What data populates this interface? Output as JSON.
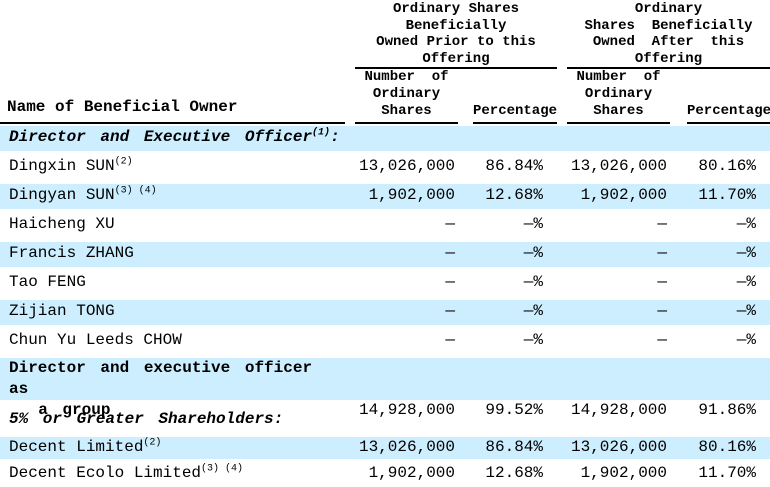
{
  "colors": {
    "row_highlight": "#cceeff",
    "rule": "#000000",
    "text": "#000000"
  },
  "headers": {
    "name": "Name of Beneficial Owner",
    "group_before": "Ordinary Shares\nBeneficially\nOwned Prior to this\nOffering",
    "group_after": "Ordinary\nShares  Beneficially\nOwned  After  this\nOffering",
    "shares_col": "Number  of\nOrdinary\nShares",
    "pct_col": "Percentage"
  },
  "rows": [
    {
      "name": "Director and Executive Officer",
      "sup": "(1)",
      "after": ":",
      "cells": [
        "",
        "",
        "",
        ""
      ]
    },
    {
      "name": "Dingxin SUN",
      "sup": "(2)",
      "cells": [
        "13,026,000",
        "86.84%",
        "13,026,000",
        "80.16%"
      ]
    },
    {
      "name": "Dingyan SUN",
      "sup": "(3) (4)",
      "cells": [
        "1,902,000",
        "12.68%",
        "1,902,000",
        "11.70%"
      ]
    },
    {
      "name": "Haicheng XU",
      "cells": [
        "—",
        "—%",
        "—",
        "—%"
      ]
    },
    {
      "name": "Francis ZHANG",
      "cells": [
        "—",
        "—%",
        "—",
        "—%"
      ]
    },
    {
      "name": "Tao FENG",
      "cells": [
        "—",
        "—%",
        "—",
        "—%"
      ]
    },
    {
      "name": "Zijian TONG",
      "cells": [
        "—",
        "—%",
        "—",
        "—%"
      ]
    },
    {
      "name": "Chun Yu Leeds CHOW",
      "cells": [
        "—",
        "—%",
        "—",
        "—%"
      ]
    },
    {
      "name": "Director and executive officer as\n  a group",
      "cells": [
        "14,928,000",
        "99.52%",
        "14,928,000",
        "91.86%"
      ]
    },
    {
      "name": "5% or Greater Shareholders:",
      "cells": [
        "",
        "",
        "",
        ""
      ]
    },
    {
      "name": "Decent Limited",
      "sup": "(2)",
      "cells": [
        "13,026,000",
        "86.84%",
        "13,026,000",
        "80.16%"
      ]
    },
    {
      "name": "Decent Ecolo Limited",
      "sup": "(3) (4)",
      "cells": [
        "1,902,000",
        "12.68%",
        "1,902,000",
        "11.70%"
      ]
    }
  ]
}
